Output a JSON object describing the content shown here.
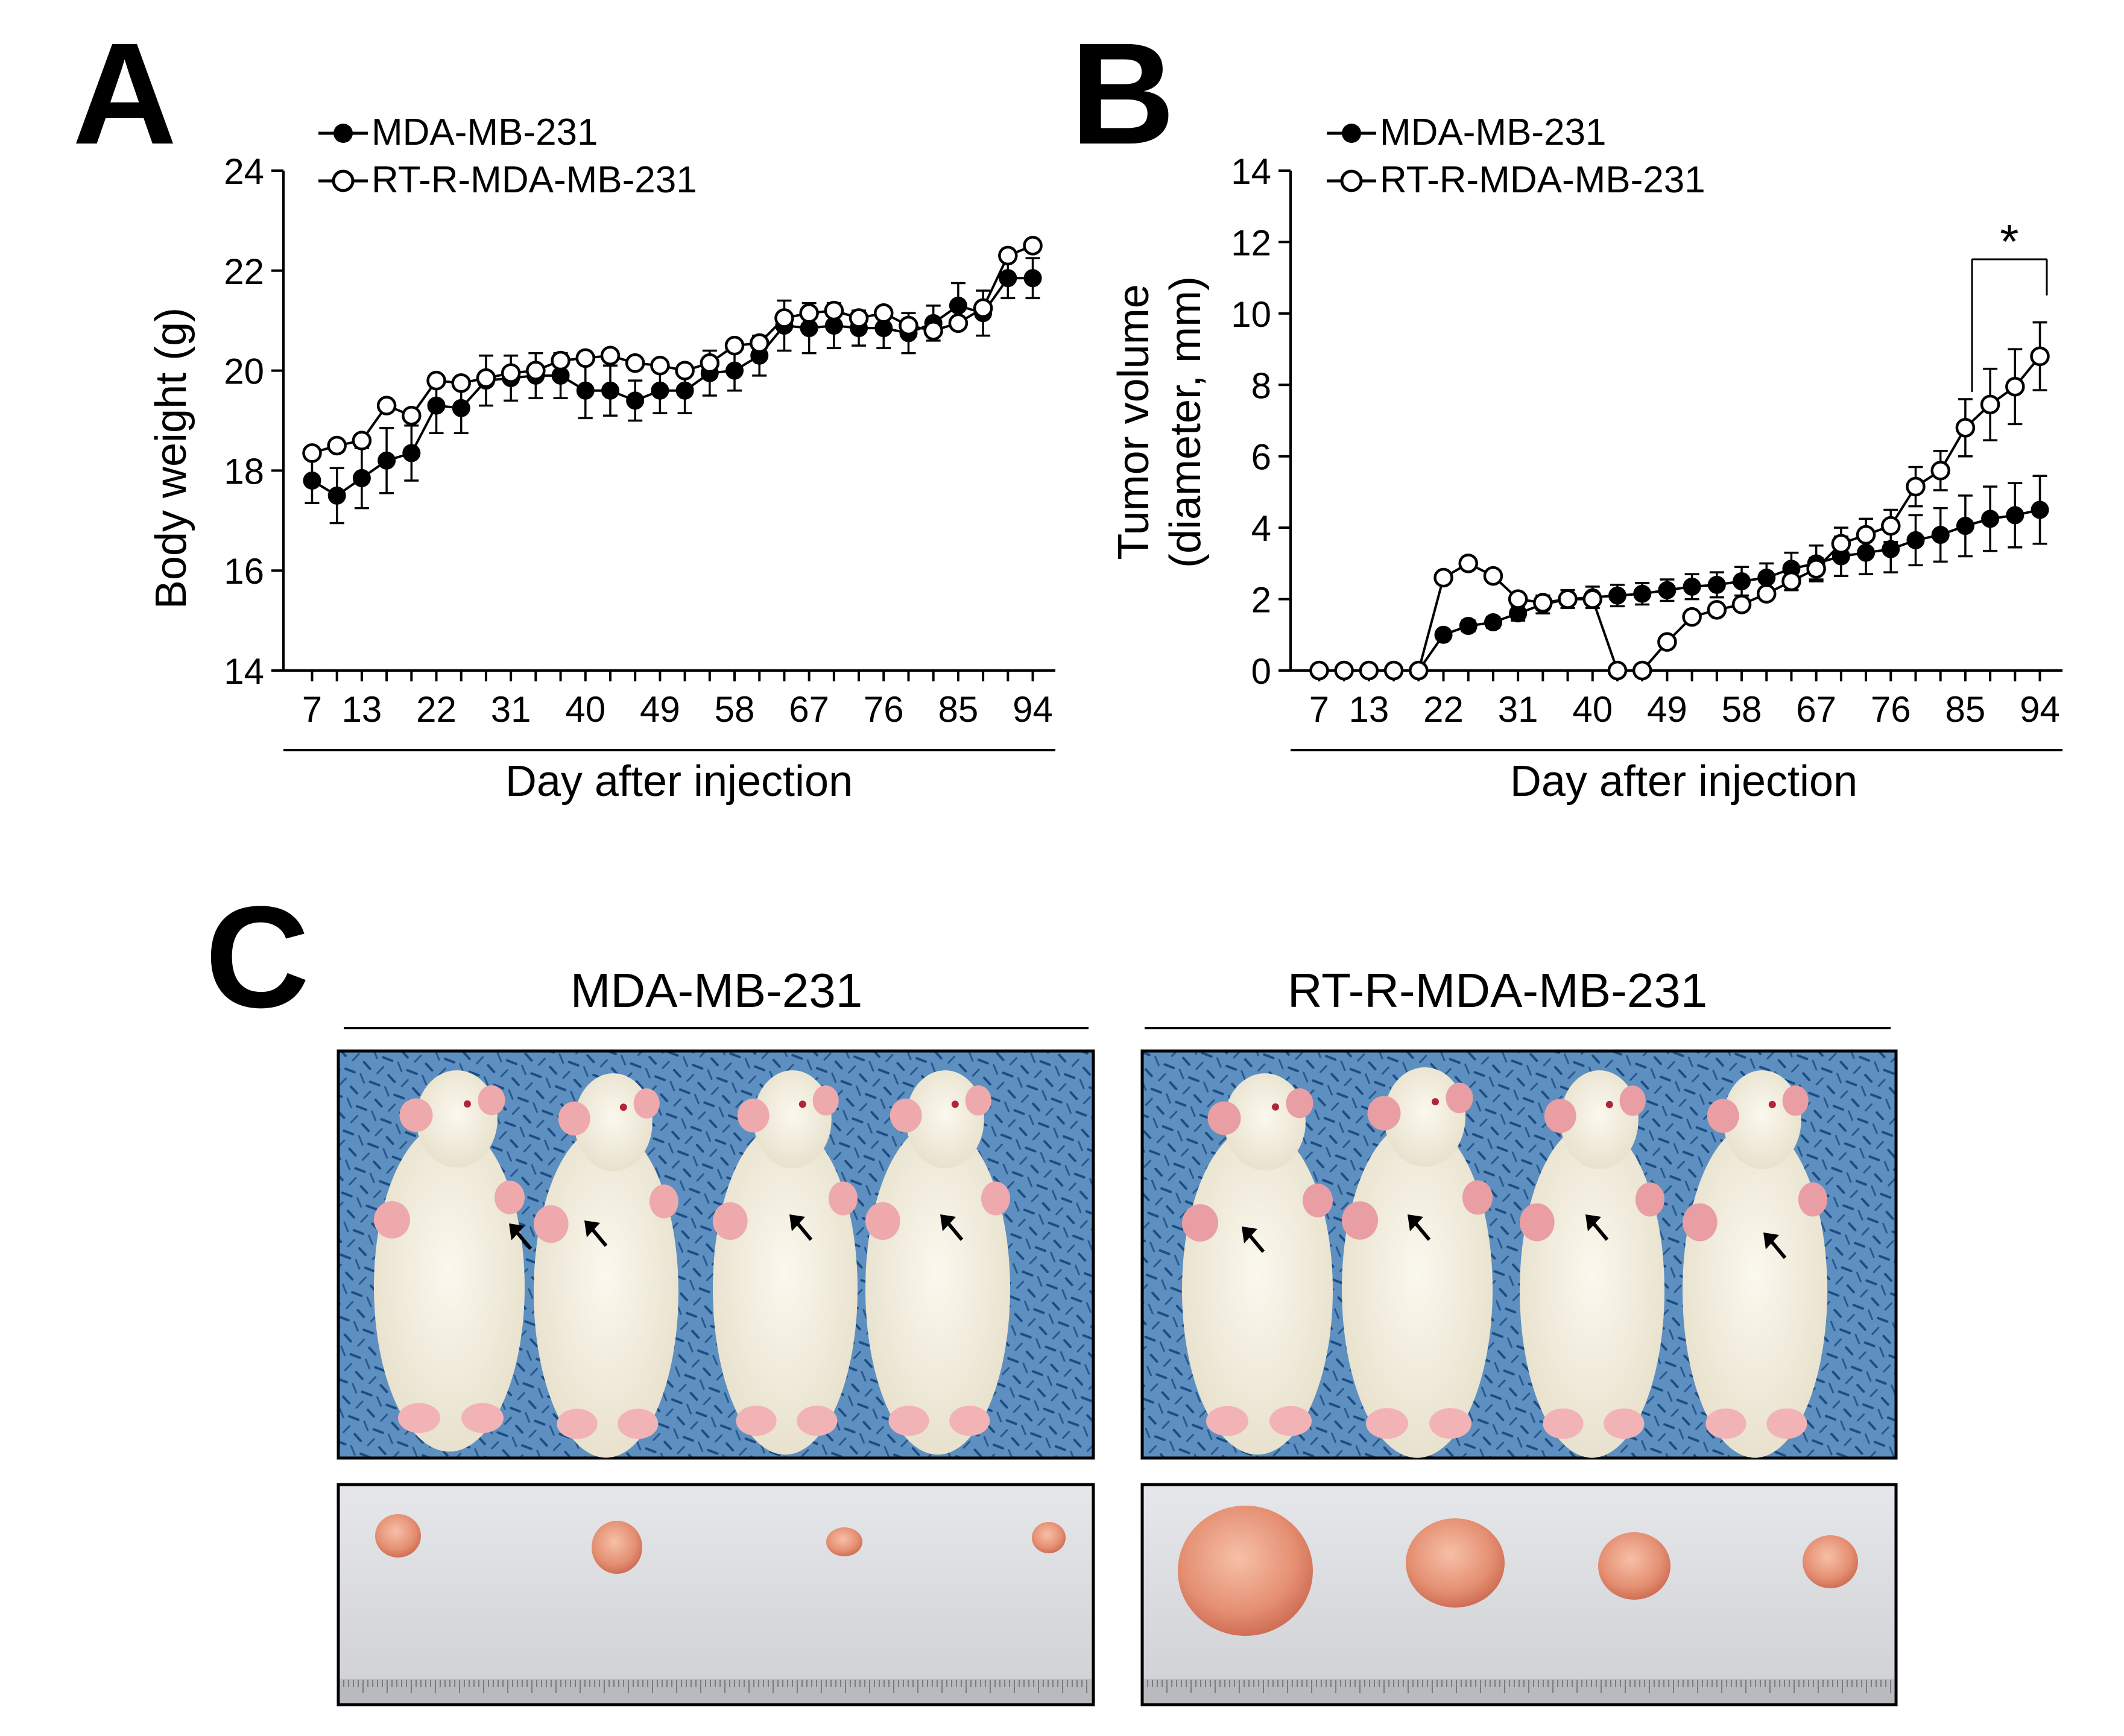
{
  "panels": {
    "a_letter": "A",
    "b_letter": "B",
    "c_letter": "C"
  },
  "chart_data": [
    {
      "type": "line",
      "panel": "A",
      "xlabel": "Day after injection",
      "ylabel": "Body weight (g)",
      "ylim": [
        14,
        24
      ],
      "yticks": [
        14,
        16,
        18,
        20,
        22,
        24
      ],
      "xlim": [
        5,
        96
      ],
      "xticks": [
        7,
        13,
        22,
        31,
        40,
        49,
        58,
        67,
        76,
        85,
        94
      ],
      "legend_position": "top-left",
      "grid": false,
      "x": [
        7,
        10,
        13,
        16,
        19,
        22,
        25,
        28,
        31,
        34,
        37,
        40,
        43,
        46,
        49,
        52,
        55,
        58,
        61,
        64,
        67,
        70,
        73,
        76,
        79,
        82,
        85,
        88,
        91,
        94
      ],
      "series": [
        {
          "name": "MDA-MB-231",
          "marker": "filled-circle",
          "values": [
            17.8,
            17.5,
            17.85,
            18.2,
            18.35,
            19.3,
            19.25,
            19.8,
            19.85,
            19.9,
            19.9,
            19.6,
            19.6,
            19.4,
            19.6,
            19.6,
            19.95,
            20.0,
            20.3,
            20.9,
            20.85,
            20.9,
            20.85,
            20.85,
            20.75,
            20.95,
            21.3,
            21.15,
            21.85,
            21.85
          ],
          "errors": [
            0.45,
            0.55,
            0.6,
            0.65,
            0.55,
            0.55,
            0.5,
            0.5,
            0.45,
            0.45,
            0.45,
            0.55,
            0.5,
            0.4,
            0.45,
            0.45,
            0.45,
            0.4,
            0.4,
            0.5,
            0.5,
            0.45,
            0.35,
            0.4,
            0.4,
            0.35,
            0.45,
            0.45,
            0.4,
            0.4
          ]
        },
        {
          "name": "RT-R-MDA-MB-231",
          "marker": "open-circle",
          "values": [
            18.35,
            18.5,
            18.6,
            19.3,
            19.1,
            19.8,
            19.75,
            19.85,
            19.95,
            20.0,
            20.2,
            20.25,
            20.3,
            20.15,
            20.1,
            20.0,
            20.15,
            20.5,
            20.55,
            21.05,
            21.15,
            21.2,
            21.05,
            21.15,
            20.9,
            20.8,
            20.95,
            21.25,
            22.3,
            22.5
          ]
        }
      ]
    },
    {
      "type": "line",
      "panel": "B",
      "xlabel": "Day after injection",
      "ylabel_line1": "Tumor volume",
      "ylabel_line2": "(diameter, mm)",
      "ylim": [
        0,
        14
      ],
      "yticks": [
        0,
        2,
        4,
        6,
        8,
        10,
        12,
        14
      ],
      "xlim": [
        5,
        96
      ],
      "xticks": [
        7,
        13,
        22,
        31,
        40,
        49,
        58,
        67,
        76,
        85,
        94
      ],
      "legend_position": "top-left",
      "grid": false,
      "annotation": "*",
      "x": [
        7,
        10,
        13,
        16,
        19,
        22,
        25,
        28,
        31,
        34,
        37,
        40,
        43,
        46,
        49,
        52,
        55,
        58,
        61,
        64,
        67,
        70,
        73,
        76,
        79,
        82,
        85,
        88,
        91,
        94
      ],
      "series": [
        {
          "name": "MDA-MB-231",
          "marker": "filled-circle",
          "values": [
            0,
            0,
            0,
            0,
            0,
            1.0,
            1.25,
            1.35,
            1.6,
            1.85,
            2.0,
            2.05,
            2.1,
            2.15,
            2.25,
            2.35,
            2.4,
            2.5,
            2.6,
            2.85,
            3.0,
            3.2,
            3.3,
            3.4,
            3.65,
            3.8,
            4.05,
            4.25,
            4.35,
            4.5
          ],
          "errors": [
            0,
            0,
            0,
            0,
            0,
            0.1,
            0.15,
            0.15,
            0.2,
            0.25,
            0.25,
            0.3,
            0.3,
            0.3,
            0.3,
            0.35,
            0.35,
            0.4,
            0.4,
            0.45,
            0.5,
            0.55,
            0.6,
            0.65,
            0.7,
            0.75,
            0.85,
            0.9,
            0.9,
            0.95
          ]
        },
        {
          "name": "RT-R-MDA-MB-231",
          "marker": "open-circle",
          "values": [
            0,
            0,
            0,
            0,
            0,
            2.6,
            3.0,
            2.65,
            2.0,
            1.9,
            2.0,
            2.0,
            0,
            0,
            0.8,
            1.5,
            1.7,
            1.85,
            2.15,
            2.5,
            2.85,
            3.55,
            3.8,
            4.05,
            5.15,
            5.6,
            6.8,
            7.45,
            7.95,
            8.8
          ],
          "errors": [
            0,
            0,
            0,
            0,
            0,
            0,
            0,
            0,
            0,
            0,
            0,
            0,
            0,
            0,
            0,
            0,
            0,
            0,
            0,
            0.25,
            0.3,
            0.45,
            0.45,
            0.45,
            0.55,
            0.55,
            0.8,
            1.0,
            1.05,
            0.95
          ]
        }
      ]
    }
  ],
  "photos": {
    "left_title": "MDA-MB-231",
    "right_title": "RT-R-MDA-MB-231"
  },
  "colors": {
    "axis": "#000000",
    "photo_background": "#5b8fbf",
    "mouse_body": "#f3efe2",
    "tumor": "#e79a80",
    "table_surface": "#d8d9dc"
  }
}
